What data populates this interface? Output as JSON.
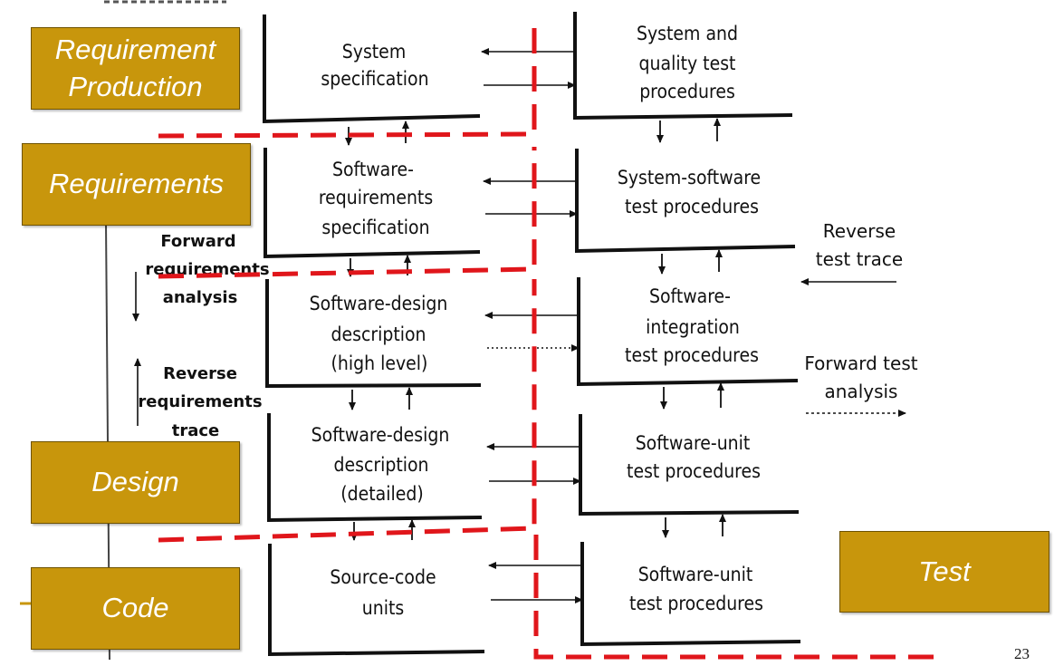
{
  "left_column": [
    [
      "System",
      "specification"
    ],
    [
      "Software-",
      "requirements",
      "specification"
    ],
    [
      "Software-design",
      "description",
      "(high level)"
    ],
    [
      "Software-design",
      "description",
      "(detailed)"
    ],
    [
      "Source-code",
      "units"
    ]
  ],
  "right_column": [
    [
      "System and",
      "quality test",
      "procedures"
    ],
    [
      "System-software",
      "test procedures"
    ],
    [
      "Software-",
      "integration",
      "test procedures"
    ],
    [
      "Software-unit",
      "test procedures"
    ],
    [
      "Software-unit",
      "test procedures"
    ]
  ],
  "side_labels": {
    "forward": [
      "Forward",
      "requirements",
      "analysis"
    ],
    "reverse": [
      "Reverse",
      "requirements",
      "trace"
    ]
  },
  "right_labels": {
    "reverse_test": [
      "Reverse",
      "test trace"
    ],
    "forward_test": [
      "Forward test",
      "analysis"
    ]
  },
  "phases": {
    "requirement_production": [
      "Requirement",
      "Production"
    ],
    "requirements": "Requirements",
    "design": "Design",
    "code": "Code",
    "test": "Test"
  },
  "page_number": "23",
  "colors": {
    "phase_fill": "#c8960c",
    "dashed_boundary": "#e0161b"
  }
}
